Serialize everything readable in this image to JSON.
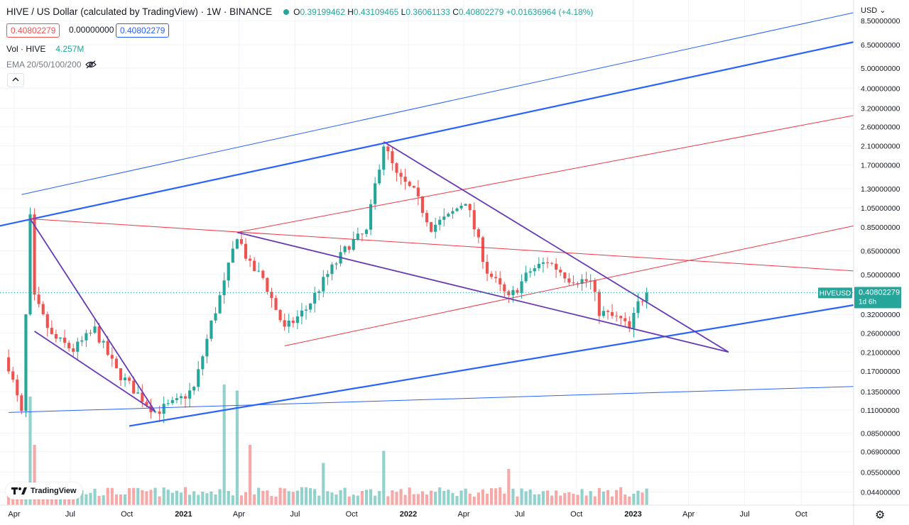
{
  "header": {
    "title": "HIVE / US Dollar (calculated by TradingView) · 1W · BINANCE",
    "open_label": "O",
    "open": "0.39199462",
    "high_label": "H",
    "high": "0.43109465",
    "low_label": "L",
    "low": "0.36061133",
    "close_label": "C",
    "close": "0.40802279",
    "change": "+0.01636964 (+4.18%)",
    "bid": "0.40802279",
    "spread": "0.00000000",
    "ask": "0.40802279",
    "vol_label": "Vol · HIVE",
    "vol_value": "4.257M",
    "ema_label": "EMA 20/50/100/200",
    "currency": "USD",
    "collapse_icon": "chevron-up-icon",
    "eye_icon": "eye-off-icon",
    "gear_icon": "gear-icon",
    "logo_text": "TradingView"
  },
  "colors": {
    "up": "#26a69a",
    "down": "#ef5350",
    "blue": "#2962ff",
    "purple": "#673ab7",
    "red": "#f23645",
    "grid": "#f0f3fa"
  },
  "chart_data": {
    "type": "candlestick",
    "symbol": "HIVEUSD",
    "last_price": "0.40802279",
    "countdown": "1d 6h",
    "scale": "log",
    "ylim": [
      0.038,
      9.0
    ],
    "xlim": [
      "2020-03-09",
      "2023-12-25"
    ],
    "y_ticks": [
      "8.50000000",
      "6.50000000",
      "5.00000000",
      "4.00000000",
      "3.20000000",
      "2.60000000",
      "2.10000000",
      "1.70000000",
      "1.30000000",
      "1.05000000",
      "0.85000000",
      "0.65000000",
      "0.50000000",
      "0.32000000",
      "0.26000000",
      "0.21000000",
      "0.17000000",
      "0.13500000",
      "0.11000000",
      "0.08500000",
      "0.06900000",
      "0.05500000",
      "0.04400000"
    ],
    "x_ticks": [
      {
        "label": "Apr",
        "date": "2020-04-01"
      },
      {
        "label": "Jul",
        "date": "2020-07-01"
      },
      {
        "label": "Oct",
        "date": "2020-10-01"
      },
      {
        "label": "2021",
        "date": "2021-01-01"
      },
      {
        "label": "Apr",
        "date": "2021-04-01"
      },
      {
        "label": "Jul",
        "date": "2021-07-01"
      },
      {
        "label": "Oct",
        "date": "2021-10-01"
      },
      {
        "label": "2022",
        "date": "2022-01-01"
      },
      {
        "label": "Apr",
        "date": "2022-04-01"
      },
      {
        "label": "Jul",
        "date": "2022-07-01"
      },
      {
        "label": "Oct",
        "date": "2022-10-01"
      },
      {
        "label": "2023",
        "date": "2023-01-01"
      },
      {
        "label": "Apr",
        "date": "2023-04-01"
      },
      {
        "label": "Jul",
        "date": "2023-07-01"
      },
      {
        "label": "Oct",
        "date": "2023-10-01"
      }
    ],
    "anchors": [
      {
        "date": "2020-03-23",
        "price": 0.18
      },
      {
        "date": "2020-04-13",
        "price": 0.105
      },
      {
        "date": "2020-04-27",
        "price": 0.93
      },
      {
        "date": "2020-05-04",
        "price": 0.38
      },
      {
        "date": "2020-06-01",
        "price": 0.25
      },
      {
        "date": "2020-07-06",
        "price": 0.215
      },
      {
        "date": "2020-08-10",
        "price": 0.27
      },
      {
        "date": "2020-09-14",
        "price": 0.17
      },
      {
        "date": "2020-10-26",
        "price": 0.125
      },
      {
        "date": "2020-11-16",
        "price": 0.108
      },
      {
        "date": "2020-12-21",
        "price": 0.12
      },
      {
        "date": "2021-01-18",
        "price": 0.14
      },
      {
        "date": "2021-02-15",
        "price": 0.29
      },
      {
        "date": "2021-03-08",
        "price": 0.45
      },
      {
        "date": "2021-03-29",
        "price": 0.78
      },
      {
        "date": "2021-04-19",
        "price": 0.55
      },
      {
        "date": "2021-05-10",
        "price": 0.48
      },
      {
        "date": "2021-06-14",
        "price": 0.27
      },
      {
        "date": "2021-07-19",
        "price": 0.34
      },
      {
        "date": "2021-08-23",
        "price": 0.5
      },
      {
        "date": "2021-09-27",
        "price": 0.7
      },
      {
        "date": "2021-10-25",
        "price": 0.8
      },
      {
        "date": "2021-11-08",
        "price": 1.35
      },
      {
        "date": "2021-11-22",
        "price": 2.15
      },
      {
        "date": "2021-12-13",
        "price": 1.5
      },
      {
        "date": "2022-01-10",
        "price": 1.25
      },
      {
        "date": "2022-02-07",
        "price": 0.85
      },
      {
        "date": "2022-03-07",
        "price": 0.95
      },
      {
        "date": "2022-04-04",
        "price": 1.15
      },
      {
        "date": "2022-05-09",
        "price": 0.52
      },
      {
        "date": "2022-06-13",
        "price": 0.38
      },
      {
        "date": "2022-07-18",
        "price": 0.52
      },
      {
        "date": "2022-08-15",
        "price": 0.58
      },
      {
        "date": "2022-09-19",
        "price": 0.48
      },
      {
        "date": "2022-10-24",
        "price": 0.46
      },
      {
        "date": "2022-11-07",
        "price": 0.33
      },
      {
        "date": "2022-12-12",
        "price": 0.3
      },
      {
        "date": "2022-12-26",
        "price": 0.27
      },
      {
        "date": "2023-01-09",
        "price": 0.36
      },
      {
        "date": "2023-01-23",
        "price": 0.408
      }
    ],
    "volume_peaks": [
      {
        "date": "2020-04-27",
        "v": 0.9
      },
      {
        "date": "2020-05-04",
        "v": 0.5
      },
      {
        "date": "2021-03-08",
        "v": 1.0
      },
      {
        "date": "2021-03-29",
        "v": 0.95
      },
      {
        "date": "2021-04-19",
        "v": 0.5
      },
      {
        "date": "2021-11-22",
        "v": 0.45
      },
      {
        "date": "2021-08-16",
        "v": 0.35
      },
      {
        "date": "2022-06-13",
        "v": 0.3
      }
    ],
    "volume_max": "4.257M",
    "trendlines": [
      {
        "color": "#2962ff",
        "width": 1,
        "p1": {
          "date": "2020-04-13",
          "price": 1.22
        },
        "p2": {
          "date": "2023-12-25",
          "price": 9.3
        }
      },
      {
        "color": "#2962ff",
        "width": 2.2,
        "p1": {
          "date": "2020-03-09",
          "price": 0.86
        },
        "p2": {
          "date": "2023-12-25",
          "price": 6.7
        }
      },
      {
        "color": "#2962ff",
        "width": 2.2,
        "p1": {
          "date": "2020-10-05",
          "price": 0.092
        },
        "p2": {
          "date": "2023-12-25",
          "price": 0.355
        }
      },
      {
        "color": "#2962ff",
        "width": 1,
        "p1": {
          "date": "2020-03-23",
          "price": 0.107
        },
        "p2": {
          "date": "2023-12-25",
          "price": 0.143
        }
      },
      {
        "color": "#f23645",
        "width": 1,
        "p1": {
          "date": "2020-04-27",
          "price": 0.93
        },
        "p2": {
          "date": "2023-12-25",
          "price": 0.52
        }
      },
      {
        "color": "#f23645",
        "width": 1,
        "p1": {
          "date": "2021-03-29",
          "price": 0.8
        },
        "p2": {
          "date": "2023-12-25",
          "price": 2.95
        }
      },
      {
        "color": "#f23645",
        "width": 1,
        "p1": {
          "date": "2021-06-14",
          "price": 0.225
        },
        "p2": {
          "date": "2023-12-25",
          "price": 0.86
        }
      },
      {
        "color": "#673ab7",
        "width": 1.8,
        "p1": {
          "date": "2020-04-27",
          "price": 0.93
        },
        "p2": {
          "date": "2020-11-16",
          "price": 0.108
        }
      },
      {
        "color": "#673ab7",
        "width": 1.8,
        "p1": {
          "date": "2020-05-04",
          "price": 0.265
        },
        "p2": {
          "date": "2020-11-16",
          "price": 0.108
        }
      },
      {
        "color": "#673ab7",
        "width": 1.8,
        "p1": {
          "date": "2021-11-22",
          "price": 2.2
        },
        "p2": {
          "date": "2023-06-05",
          "price": 0.21
        }
      },
      {
        "color": "#673ab7",
        "width": 1.8,
        "p1": {
          "date": "2021-03-29",
          "price": 0.8
        },
        "p2": {
          "date": "2023-06-05",
          "price": 0.21
        }
      }
    ]
  }
}
